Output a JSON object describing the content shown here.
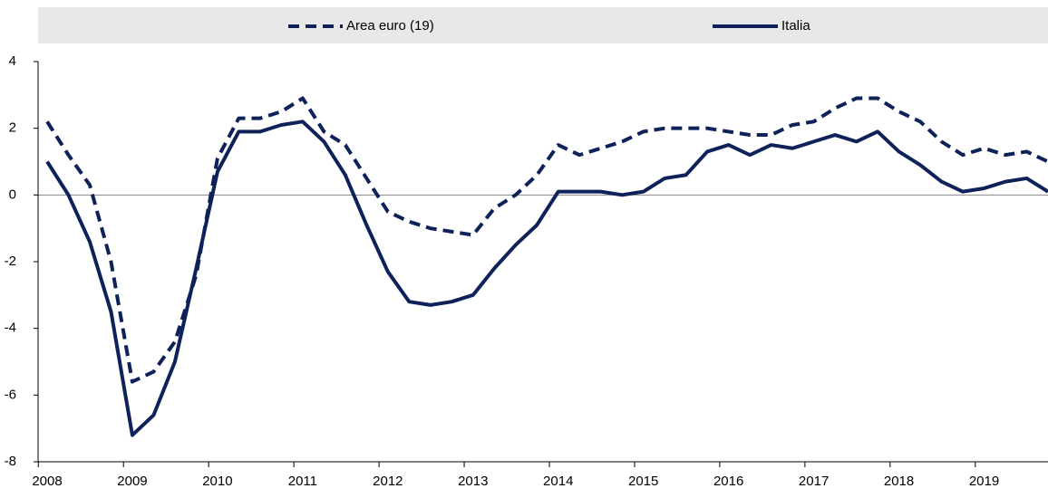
{
  "chart_data": {
    "type": "line",
    "categories": [
      "2008",
      null,
      null,
      null,
      "2009",
      null,
      null,
      null,
      "2010",
      null,
      null,
      null,
      "2011",
      null,
      null,
      null,
      "2012",
      null,
      null,
      null,
      "2013",
      null,
      null,
      null,
      "2014",
      null,
      null,
      null,
      "2015",
      null,
      null,
      null,
      "2016",
      null,
      null,
      null,
      "2017",
      null,
      null,
      null,
      "2018",
      null,
      null,
      null,
      "2019",
      null,
      null,
      null
    ],
    "series": [
      {
        "name": "Area euro (19)",
        "color": "#0e2259",
        "style": "dashed",
        "values": [
          2.2,
          1.2,
          0.3,
          -2.0,
          -5.6,
          -5.3,
          -4.4,
          -2.4,
          1.1,
          2.3,
          2.3,
          2.5,
          2.9,
          1.9,
          1.5,
          0.5,
          -0.5,
          -0.8,
          -1.0,
          -1.1,
          -1.2,
          -0.4,
          0.0,
          0.6,
          1.5,
          1.2,
          1.4,
          1.6,
          1.9,
          2.0,
          2.0,
          2.0,
          1.9,
          1.8,
          1.8,
          2.1,
          2.2,
          2.6,
          2.9,
          2.9,
          2.5,
          2.2,
          1.6,
          1.2,
          1.4,
          1.2,
          1.3,
          1.0
        ]
      },
      {
        "name": "Italia",
        "color": "#0e2259",
        "style": "solid",
        "values": [
          1.0,
          0.0,
          -1.4,
          -3.5,
          -7.2,
          -6.6,
          -5.0,
          -2.2,
          0.7,
          1.9,
          1.9,
          2.1,
          2.2,
          1.6,
          0.6,
          -0.9,
          -2.3,
          -3.2,
          -3.3,
          -3.2,
          -3.0,
          -2.2,
          -1.5,
          -0.9,
          0.1,
          0.1,
          0.1,
          0.0,
          0.1,
          0.5,
          0.6,
          1.3,
          1.5,
          1.2,
          1.5,
          1.4,
          1.6,
          1.8,
          1.6,
          1.9,
          1.3,
          0.9,
          0.4,
          0.1,
          0.2,
          0.4,
          0.5,
          0.1
        ]
      }
    ],
    "ylim": [
      -8,
      4
    ],
    "yticks": [
      -8,
      -6,
      -4,
      -2,
      0,
      2,
      4
    ],
    "legend": "top"
  }
}
